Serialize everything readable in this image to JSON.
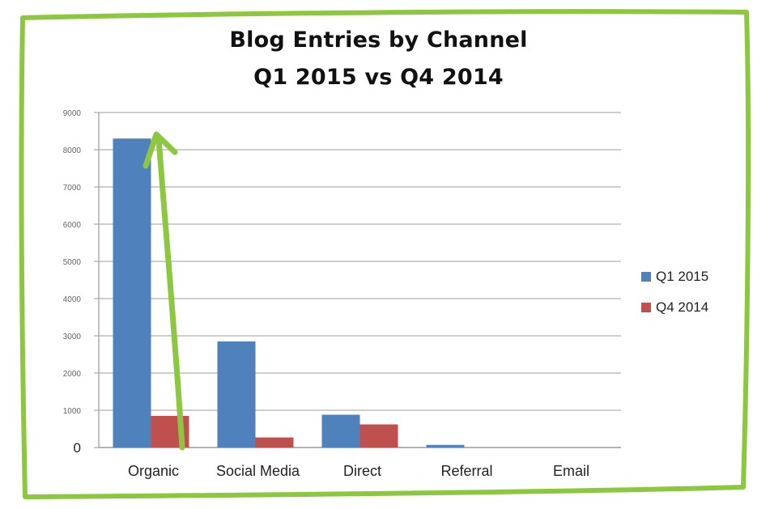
{
  "colors": {
    "frame": "#8DC63F",
    "arrow": "#8DC63F",
    "grid": "#BEBEBE",
    "axis": "#9A9A9A",
    "q1": "#4F81BD",
    "q4": "#C0504D"
  },
  "chart_data": {
    "type": "bar",
    "title": "Blog Entries by Channel",
    "subtitle": "Q1 2015 vs Q4 2014",
    "categories": [
      "Organic",
      "Social Media",
      "Direct",
      "Referral",
      "Email"
    ],
    "series": [
      {
        "name": "Q1 2015",
        "values": [
          8300,
          2850,
          880,
          70,
          0
        ]
      },
      {
        "name": "Q4 2014",
        "values": [
          850,
          270,
          620,
          0,
          0
        ]
      }
    ],
    "y_ticks": [
      "0",
      "1000",
      "2000",
      "3000",
      "4000",
      "5000",
      "6000",
      "7000",
      "8000",
      "9000"
    ],
    "ylim": [
      0,
      9000
    ],
    "grid": true,
    "legend": "right",
    "annotation": "green-upward-arrow-on-organic"
  }
}
